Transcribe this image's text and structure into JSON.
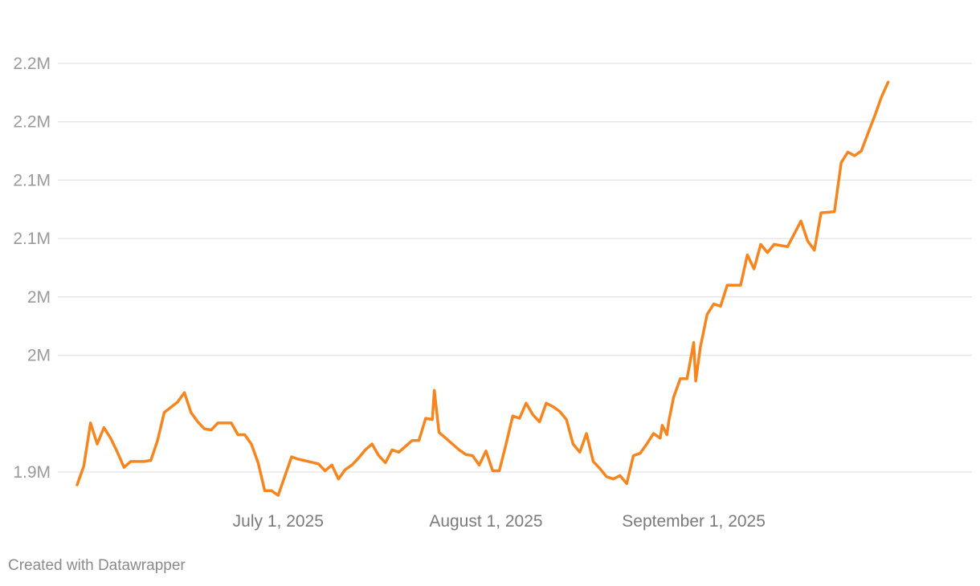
{
  "chart_data": {
    "type": "line",
    "title": "",
    "xlabel": "",
    "ylabel": "",
    "grid": true,
    "legend": "none",
    "color": "#f5861f",
    "x_start_date": "2025-06-01",
    "x_end_date": "2025-10-10",
    "y_range": [
      1880000,
      2280000
    ],
    "y_ticks": [
      {
        "value": 1900000,
        "label": "1.9M"
      },
      {
        "value": 2000000,
        "label": "2M"
      },
      {
        "value": 2050000,
        "label": "2M"
      },
      {
        "value": 2100000,
        "label": "2.1M"
      },
      {
        "value": 2150000,
        "label": "2.1M"
      },
      {
        "value": 2200000,
        "label": "2.2M"
      },
      {
        "value": 2250000,
        "label": "2.2M"
      }
    ],
    "x_ticks": [
      {
        "date": "2025-07-01",
        "label": "July 1, 2025"
      },
      {
        "date": "2025-08-01",
        "label": "August 1, 2025"
      },
      {
        "date": "2025-09-01",
        "label": "September 1, 2025"
      }
    ],
    "series": [
      {
        "values": [
          [
            "2025-06-01",
            1889000
          ],
          [
            "2025-06-02",
            1905000
          ],
          [
            "2025-06-03",
            1942000
          ],
          [
            "2025-06-04",
            1924000
          ],
          [
            "2025-06-05",
            1938000
          ],
          [
            "2025-06-06",
            1929000
          ],
          [
            "2025-06-07",
            1917000
          ],
          [
            "2025-06-08",
            1904000
          ],
          [
            "2025-06-09",
            1909000
          ],
          [
            "2025-06-11",
            1909000
          ],
          [
            "2025-06-12",
            1910000
          ],
          [
            "2025-06-13",
            1927000
          ],
          [
            "2025-06-14",
            1951000
          ],
          [
            "2025-06-16",
            1960000
          ],
          [
            "2025-06-17",
            1968000
          ],
          [
            "2025-06-18",
            1951000
          ],
          [
            "2025-06-19",
            1943000
          ],
          [
            "2025-06-20",
            1937000
          ],
          [
            "2025-06-21",
            1936000
          ],
          [
            "2025-06-22",
            1942000
          ],
          [
            "2025-06-24",
            1942000
          ],
          [
            "2025-06-25",
            1932000
          ],
          [
            "2025-06-26",
            1932000
          ],
          [
            "2025-06-27",
            1924000
          ],
          [
            "2025-06-28",
            1908000
          ],
          [
            "2025-06-29",
            1884000
          ],
          [
            "2025-06-30",
            1884000
          ],
          [
            "2025-07-01",
            1880000
          ],
          [
            "2025-07-03",
            1913000
          ],
          [
            "2025-07-04",
            1911000
          ],
          [
            "2025-07-07",
            1907000
          ],
          [
            "2025-07-08",
            1901000
          ],
          [
            "2025-07-09",
            1906000
          ],
          [
            "2025-07-10",
            1894000
          ],
          [
            "2025-07-11",
            1902000
          ],
          [
            "2025-07-12",
            1906000
          ],
          [
            "2025-07-13",
            1912000
          ],
          [
            "2025-07-14",
            1919000
          ],
          [
            "2025-07-15",
            1924000
          ],
          [
            "2025-07-16",
            1914000
          ],
          [
            "2025-07-17",
            1908000
          ],
          [
            "2025-07-18",
            1919000
          ],
          [
            "2025-07-19",
            1917000
          ],
          [
            "2025-07-20",
            1922000
          ],
          [
            "2025-07-21",
            1927000
          ],
          [
            "2025-07-22",
            1927000
          ],
          [
            "2025-07-23",
            1946000
          ],
          [
            "2025-07-24",
            1945000
          ],
          [
            "2025-07-24",
            1970000
          ],
          [
            "2025-07-25",
            1934000
          ],
          [
            "2025-07-26",
            1929000
          ],
          [
            "2025-07-27",
            1924000
          ],
          [
            "2025-07-28",
            1919000
          ],
          [
            "2025-07-29",
            1915000
          ],
          [
            "2025-07-30",
            1914000
          ],
          [
            "2025-07-31",
            1906000
          ],
          [
            "2025-08-01",
            1918000
          ],
          [
            "2025-08-02",
            1901000
          ],
          [
            "2025-08-03",
            1901000
          ],
          [
            "2025-08-04",
            1924000
          ],
          [
            "2025-08-05",
            1948000
          ],
          [
            "2025-08-06",
            1946000
          ],
          [
            "2025-08-07",
            1959000
          ],
          [
            "2025-08-08",
            1949000
          ],
          [
            "2025-08-09",
            1943000
          ],
          [
            "2025-08-10",
            1959000
          ],
          [
            "2025-08-11",
            1956000
          ],
          [
            "2025-08-12",
            1952000
          ],
          [
            "2025-08-13",
            1945000
          ],
          [
            "2025-08-14",
            1924000
          ],
          [
            "2025-08-15",
            1917000
          ],
          [
            "2025-08-16",
            1933000
          ],
          [
            "2025-08-17",
            1909000
          ],
          [
            "2025-08-18",
            1903000
          ],
          [
            "2025-08-19",
            1896000
          ],
          [
            "2025-08-20",
            1894000
          ],
          [
            "2025-08-21",
            1897000
          ],
          [
            "2025-08-22",
            1890000
          ],
          [
            "2025-08-23",
            1914000
          ],
          [
            "2025-08-24",
            1916000
          ],
          [
            "2025-08-25",
            1924000
          ],
          [
            "2025-08-26",
            1933000
          ],
          [
            "2025-08-27",
            1929000
          ],
          [
            "2025-08-27",
            1940000
          ],
          [
            "2025-08-28",
            1932000
          ],
          [
            "2025-08-28",
            1944000
          ],
          [
            "2025-08-29",
            1964000
          ],
          [
            "2025-08-30",
            1980000
          ],
          [
            "2025-08-31",
            1980000
          ],
          [
            "2025-09-01",
            2011000
          ],
          [
            "2025-09-01",
            1978000
          ],
          [
            "2025-09-02",
            2007000
          ],
          [
            "2025-09-03",
            2035000
          ],
          [
            "2025-09-04",
            2044000
          ],
          [
            "2025-09-05",
            2042000
          ],
          [
            "2025-09-06",
            2060000
          ],
          [
            "2025-09-07",
            2060000
          ],
          [
            "2025-09-08",
            2060000
          ],
          [
            "2025-09-09",
            2086000
          ],
          [
            "2025-09-10",
            2074000
          ],
          [
            "2025-09-11",
            2095000
          ],
          [
            "2025-09-12",
            2088000
          ],
          [
            "2025-09-13",
            2095000
          ],
          [
            "2025-09-14",
            2094000
          ],
          [
            "2025-09-15",
            2093000
          ],
          [
            "2025-09-16",
            2104000
          ],
          [
            "2025-09-17",
            2115000
          ],
          [
            "2025-09-18",
            2098000
          ],
          [
            "2025-09-19",
            2090000
          ],
          [
            "2025-09-20",
            2122000
          ],
          [
            "2025-09-22",
            2123000
          ],
          [
            "2025-09-23",
            2165000
          ],
          [
            "2025-09-24",
            2174000
          ],
          [
            "2025-09-25",
            2171000
          ],
          [
            "2025-09-26",
            2175000
          ],
          [
            "2025-09-27",
            2190000
          ],
          [
            "2025-09-28",
            2205000
          ],
          [
            "2025-09-29",
            2221000
          ],
          [
            "2025-09-30",
            2234000
          ]
        ]
      }
    ]
  },
  "footer": {
    "credit": "Created with Datawrapper"
  }
}
